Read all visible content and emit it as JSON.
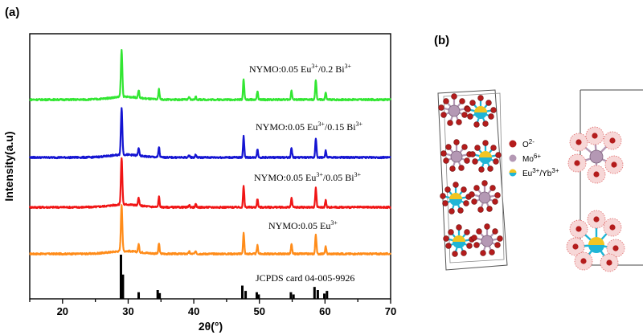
{
  "panels": {
    "a": "(a)",
    "b": "(b)"
  },
  "chart_data": {
    "type": "line",
    "xlabel": "2θ(°)",
    "ylabel": "Intensity(a.u)",
    "xlim": [
      15,
      70
    ],
    "xticks": [
      20,
      30,
      40,
      50,
      60,
      70
    ],
    "y_ticks_shown": false,
    "series": [
      {
        "color": "#ff8c1a",
        "offset": 0,
        "label_parts": [
          "NYMO:0.05 Eu",
          "3+"
        ]
      },
      {
        "color": "#f01515",
        "offset": 1,
        "label_parts": [
          "NYMO:0.05 Eu",
          "3+",
          "/0.05 Bi",
          "3+"
        ]
      },
      {
        "color": "#1414d2",
        "offset": 2,
        "label_parts": [
          "NYMO:0.05 Eu",
          "3+",
          "/0.15 Bi",
          "3+"
        ]
      },
      {
        "color": "#32e632",
        "offset": 3,
        "label_parts": [
          "NYMO:0.05 Eu",
          "3+",
          "/0.2 Bi",
          "3+"
        ]
      }
    ],
    "peaks": [
      {
        "x": 29.0,
        "h": 1.0
      },
      {
        "x": 31.6,
        "h": 0.17
      },
      {
        "x": 34.7,
        "h": 0.22
      },
      {
        "x": 39.3,
        "h": 0.05
      },
      {
        "x": 40.3,
        "h": 0.06
      },
      {
        "x": 47.6,
        "h": 0.45
      },
      {
        "x": 49.7,
        "h": 0.18
      },
      {
        "x": 54.9,
        "h": 0.2
      },
      {
        "x": 58.6,
        "h": 0.42
      },
      {
        "x": 60.1,
        "h": 0.15
      }
    ],
    "reference": {
      "label": "JCPDS card 04-005-9926",
      "color": "#000000",
      "lines": [
        {
          "x": 28.9,
          "h": 1.0
        },
        {
          "x": 29.2,
          "h": 0.55
        },
        {
          "x": 31.6,
          "h": 0.15
        },
        {
          "x": 34.5,
          "h": 0.2
        },
        {
          "x": 34.8,
          "h": 0.13
        },
        {
          "x": 47.4,
          "h": 0.3
        },
        {
          "x": 47.9,
          "h": 0.18
        },
        {
          "x": 49.6,
          "h": 0.15
        },
        {
          "x": 49.9,
          "h": 0.1
        },
        {
          "x": 54.8,
          "h": 0.15
        },
        {
          "x": 55.2,
          "h": 0.1
        },
        {
          "x": 58.4,
          "h": 0.27
        },
        {
          "x": 58.9,
          "h": 0.2
        },
        {
          "x": 59.9,
          "h": 0.12
        },
        {
          "x": 60.3,
          "h": 0.18
        }
      ]
    }
  },
  "legend": {
    "oxygen": [
      "O",
      "2-"
    ],
    "molybdenum": [
      "Mo",
      "6+"
    ],
    "eu_yb": [
      "Eu",
      "3+",
      "/Yb",
      "3+"
    ]
  },
  "colors": {
    "oxygen": "#b41c1c",
    "molybdenum": "#b498b4",
    "europium": "#f2c521",
    "ytterbium": "#1fb5d6"
  }
}
